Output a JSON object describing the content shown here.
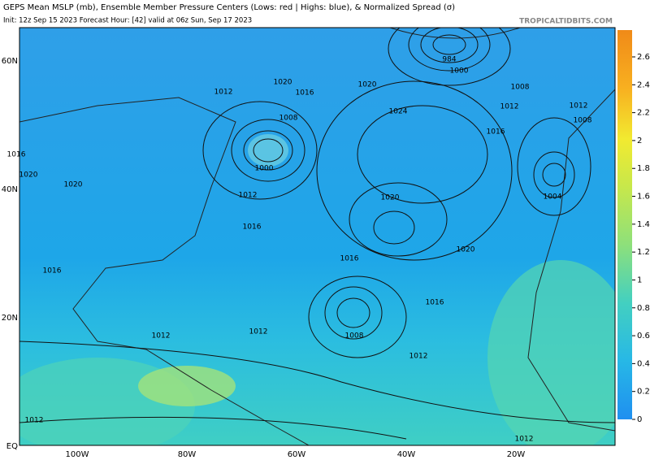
{
  "header": {
    "title": "GEPS Mean MSLP (mb), Ensemble Member Pressure Centers (Lows: red | Highs: blue), & Normalized Spread (σ)",
    "subtitle": "Init: 12z Sep 15 2023   Forecast Hour: [42]   valid at 06z Sun, Sep 17 2023",
    "credit": "TROPICALTIDBITS.COM"
  },
  "map": {
    "lat_labels": [
      "60N",
      "40N",
      "20N",
      "EQ"
    ],
    "lon_labels": [
      "100W",
      "80W",
      "60W",
      "40W",
      "20W"
    ],
    "isobar_labels": [
      "1020",
      "1012",
      "1016",
      "1008",
      "1000",
      "1012",
      "1016",
      "1020",
      "1020",
      "1016",
      "1016",
      "1020",
      "1024",
      "1020",
      "1008",
      "1012",
      "1016",
      "1000",
      "984",
      "1012",
      "1008",
      "1004",
      "1016",
      "1020",
      "1016",
      "1012",
      "1012",
      "1008",
      "1012",
      "1012",
      "1012"
    ]
  },
  "colorbar": {
    "ticks": [
      0,
      0.2,
      0.4,
      0.6,
      0.8,
      1,
      1.2,
      1.4,
      1.6,
      1.8,
      2,
      2.2,
      2.4,
      2.6
    ]
  }
}
